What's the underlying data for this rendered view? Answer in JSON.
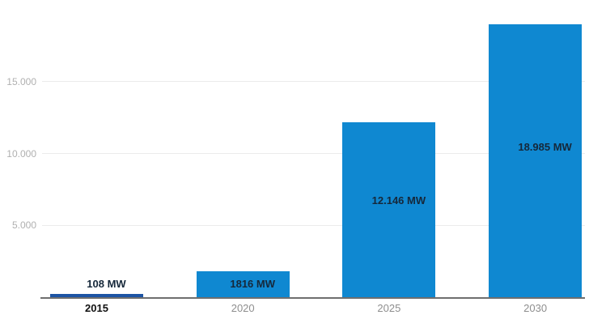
{
  "chart_data": {
    "type": "bar",
    "categories": [
      "2015",
      "2020",
      "2025",
      "2030"
    ],
    "values": [
      108,
      1816,
      12146,
      18985
    ],
    "value_labels": [
      "108 MW",
      "1816 MW",
      "12.146 MW",
      "18.985 MW"
    ],
    "unit": "MW",
    "title": "",
    "xlabel": "",
    "ylabel": "",
    "ylim": [
      0,
      20000
    ],
    "yticks": [
      {
        "value": 5000,
        "label": "5.000"
      },
      {
        "value": 10000,
        "label": "10.000"
      },
      {
        "value": 15000,
        "label": "15.000"
      }
    ],
    "grid": true,
    "legend_position": "none",
    "highlighted_index": 0,
    "colors": {
      "bar": "#0f88d1",
      "bar_highlight": "#1d54a4",
      "value_label": "#16283a",
      "axis_line": "#6f6f6f",
      "gridline": "#ebebeb",
      "ytick_label": "#b0b0b0",
      "xtick_label": "#8e8e8e",
      "xtick_label_highlight": "#111111",
      "background": "#ffffff"
    }
  }
}
